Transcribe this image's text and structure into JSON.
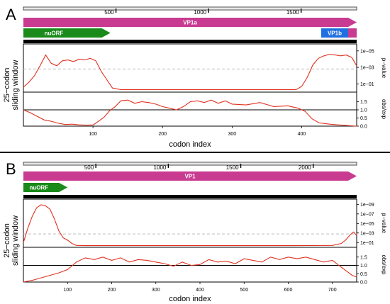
{
  "chart_data": [
    {
      "panel": "A",
      "type": "line",
      "xlabel": "codon index",
      "ylabel": "25−codon sliding window",
      "x_range": [
        0,
        479
      ],
      "x_ticks": [
        100,
        200,
        300,
        400
      ],
      "genome": {
        "ruler_ticks": [
          500,
          1000,
          1500
        ],
        "ruler_range": [
          0,
          1800
        ],
        "features": [
          {
            "label": "VP1a",
            "color": "#c93a91",
            "start": 0,
            "end": 479,
            "arrow": true
          },
          {
            "label": "nuORF",
            "color": "#1a8a1a",
            "start": 0,
            "end": 125,
            "arrow": true
          },
          {
            "label": "VP1b",
            "color": "#1f6fe0",
            "start": 428,
            "end": 479,
            "arrow": false
          }
        ]
      },
      "pvalue": {
        "label": "p−value",
        "y_ticks": [
          "1e−05",
          "1e−03",
          "1e−01"
        ],
        "y_range_log10": [
          0,
          -5.5
        ],
        "threshold_log10": -2.8,
        "x": [
          0,
          8,
          16,
          24,
          32,
          40,
          48,
          56,
          64,
          72,
          80,
          88,
          96,
          104,
          112,
          120,
          128,
          140,
          160,
          200,
          240,
          280,
          320,
          360,
          380,
          392,
          400,
          408,
          416,
          424,
          432,
          440,
          448,
          456,
          464,
          472,
          479
        ],
        "y": [
          0.6,
          1.2,
          2.0,
          3.2,
          4.5,
          3.5,
          3.2,
          3.8,
          3.9,
          3.7,
          4.0,
          3.9,
          4.1,
          3.8,
          2.5,
          1.5,
          0.5,
          0.3,
          0.3,
          0.3,
          0.3,
          0.3,
          0.3,
          0.3,
          0.3,
          0.3,
          0.7,
          1.8,
          3.3,
          4.1,
          4.4,
          4.6,
          4.5,
          4.4,
          4.5,
          4.2,
          3.2
        ]
      },
      "obsexp": {
        "label": "obs/exp",
        "y_ticks": [
          0.0,
          0.5,
          1.0,
          1.5
        ],
        "y_range": [
          0,
          2.0
        ],
        "reference": 1.0,
        "x": [
          0,
          10,
          20,
          30,
          40,
          50,
          60,
          70,
          80,
          90,
          100,
          108,
          116,
          124,
          132,
          140,
          150,
          160,
          170,
          180,
          190,
          200,
          210,
          220,
          230,
          240,
          250,
          260,
          270,
          280,
          290,
          300,
          320,
          340,
          360,
          380,
          395,
          405,
          415,
          425,
          440,
          460,
          479
        ],
        "y": [
          1.0,
          0.82,
          0.6,
          0.38,
          0.3,
          0.18,
          0.1,
          0.12,
          0.08,
          0.06,
          0.07,
          0.3,
          0.55,
          0.95,
          1.2,
          1.55,
          1.6,
          1.4,
          1.5,
          1.45,
          1.35,
          1.2,
          1.1,
          1.0,
          1.2,
          1.5,
          1.55,
          1.45,
          1.6,
          1.4,
          1.55,
          1.35,
          1.3,
          1.45,
          1.2,
          1.25,
          1.1,
          0.9,
          0.45,
          0.2,
          0.12,
          0.05,
          0.0
        ]
      }
    },
    {
      "panel": "B",
      "type": "line",
      "xlabel": "codon index",
      "ylabel": "25−codon sliding window",
      "x_range": [
        0,
        755
      ],
      "x_ticks": [
        100,
        200,
        300,
        400,
        500,
        600,
        700
      ],
      "genome": {
        "ruler_ticks": [
          500,
          1000,
          1500,
          2000
        ],
        "ruler_range": [
          0,
          2300
        ],
        "features": [
          {
            "label": "VP1",
            "color": "#c93a91",
            "start": 0,
            "end": 755,
            "arrow": true
          },
          {
            "label": "nuORF",
            "color": "#1a8a1a",
            "start": 0,
            "end": 100,
            "arrow": true
          }
        ]
      },
      "pvalue": {
        "label": "p−value",
        "y_ticks": [
          "1e−09",
          "1e−07",
          "1e−05",
          "1e−03",
          "1e−01"
        ],
        "y_range_log10": [
          0,
          -9.5
        ],
        "threshold_log10": -2.8,
        "x": [
          0,
          10,
          20,
          30,
          40,
          50,
          60,
          70,
          80,
          90,
          100,
          110,
          120,
          140,
          200,
          300,
          400,
          500,
          600,
          700,
          720,
          730,
          740,
          748,
          755
        ],
        "y": [
          1.0,
          4.0,
          6.5,
          8.3,
          8.9,
          8.7,
          8.0,
          6.0,
          3.5,
          2.0,
          1.5,
          0.8,
          0.4,
          0.35,
          0.35,
          0.35,
          0.35,
          0.35,
          0.35,
          0.4,
          0.8,
          1.5,
          2.6,
          3.2,
          2.5
        ]
      },
      "obsexp": {
        "label": "obs/exp",
        "y_ticks": [
          0.0,
          0.5,
          1.0,
          1.5
        ],
        "y_range": [
          0,
          2.0
        ],
        "reference": 1.0,
        "x": [
          0,
          20,
          40,
          60,
          80,
          100,
          120,
          140,
          160,
          180,
          200,
          220,
          240,
          260,
          280,
          300,
          320,
          340,
          360,
          380,
          400,
          420,
          440,
          460,
          480,
          500,
          520,
          540,
          560,
          580,
          600,
          620,
          640,
          660,
          680,
          700,
          720,
          735,
          745,
          755
        ],
        "y": [
          0.0,
          0.1,
          0.25,
          0.4,
          0.55,
          0.75,
          1.2,
          1.45,
          1.35,
          1.5,
          1.3,
          1.45,
          1.2,
          1.35,
          1.3,
          1.2,
          1.1,
          0.95,
          1.2,
          1.0,
          1.05,
          1.35,
          1.2,
          1.25,
          1.1,
          1.4,
          1.3,
          1.2,
          1.5,
          1.35,
          1.5,
          1.4,
          1.5,
          1.35,
          1.2,
          1.3,
          0.9,
          0.6,
          0.4,
          0.3
        ]
      }
    }
  ]
}
